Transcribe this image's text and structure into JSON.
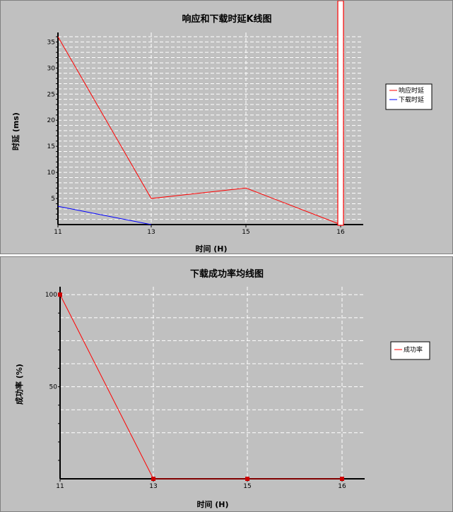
{
  "chart_data": [
    {
      "type": "line",
      "title": "响应和下载时延K线图",
      "xlabel": "时间 (H)",
      "ylabel": "时延 (ms)",
      "categories": [
        "11",
        "13",
        "15",
        "16"
      ],
      "ylim": [
        0,
        36
      ],
      "yticks": [
        "5",
        "10",
        "15",
        "20",
        "25",
        "30",
        "35"
      ],
      "ytick_values": [
        5,
        10,
        15,
        20,
        25,
        30,
        35
      ],
      "grid": true,
      "legend_position": "right",
      "series": [
        {
          "name": "响应时延",
          "color": "#ff0000",
          "values": [
            36,
            5,
            7,
            0
          ]
        },
        {
          "name": "下载时延",
          "color": "#0000ff",
          "values": [
            3.5,
            0,
            null,
            null
          ]
        }
      ]
    },
    {
      "type": "line",
      "title": "下载成功率均线图",
      "xlabel": "时间 (H)",
      "ylabel": "成功率 (%)",
      "categories": [
        "11",
        "13",
        "15",
        "16"
      ],
      "ylim": [
        0,
        102
      ],
      "yticks": [
        "50",
        "100"
      ],
      "ytick_values": [
        50,
        100
      ],
      "grid": true,
      "legend_position": "right",
      "series": [
        {
          "name": "成功率",
          "color": "#ff0000",
          "values": [
            100,
            0,
            0,
            0
          ]
        }
      ]
    }
  ]
}
